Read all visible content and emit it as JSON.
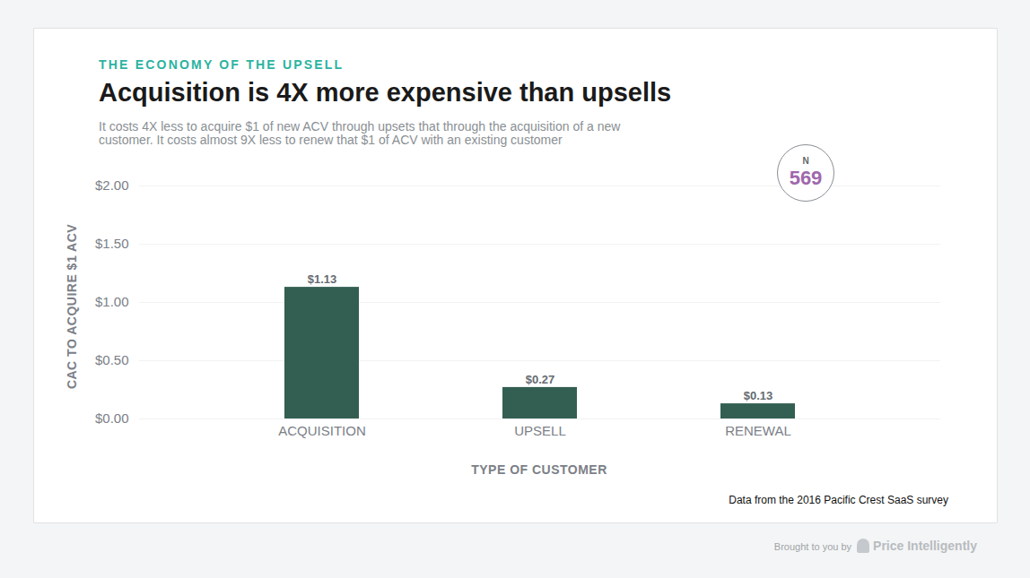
{
  "chart_data": {
    "type": "bar",
    "kicker": "THE ECONOMY OF THE UPSELL",
    "title": "Acquisition is 4X more expensive than upsells",
    "subtitle": "It costs 4X less to acquire $1 of new ACV through upsets that through the acquisition of a new customer. It costs almost 9X less to renew that $1 of ACV with an existing customer",
    "x_label": "TYPE OF CUSTOMER",
    "y_label": "CAC TO ACQUIRE $1 ACV",
    "categories": [
      "ACQUISITION",
      "UPSELL",
      "RENEWAL"
    ],
    "values": [
      1.13,
      0.27,
      0.13
    ],
    "value_labels": [
      "$1.13",
      "$0.27",
      "$0.13"
    ],
    "color": "#335f52",
    "ylim": [
      0,
      2
    ],
    "yticks": [
      {
        "value": 0,
        "label": "$0.00"
      },
      {
        "value": 0.5,
        "label": "$0.50"
      },
      {
        "value": 1,
        "label": "$1.00"
      },
      {
        "value": 1.5,
        "label": "$1.50"
      },
      {
        "value": 2,
        "label": "$2.00"
      }
    ],
    "grid": true,
    "data_labels": true,
    "n_badge": {
      "label": "N",
      "value": 569
    },
    "source": "Data from the 2016 Pacific Crest SaaS survey",
    "credit": {
      "text": "Brought to you by",
      "brand": "Price Intelligently"
    }
  }
}
